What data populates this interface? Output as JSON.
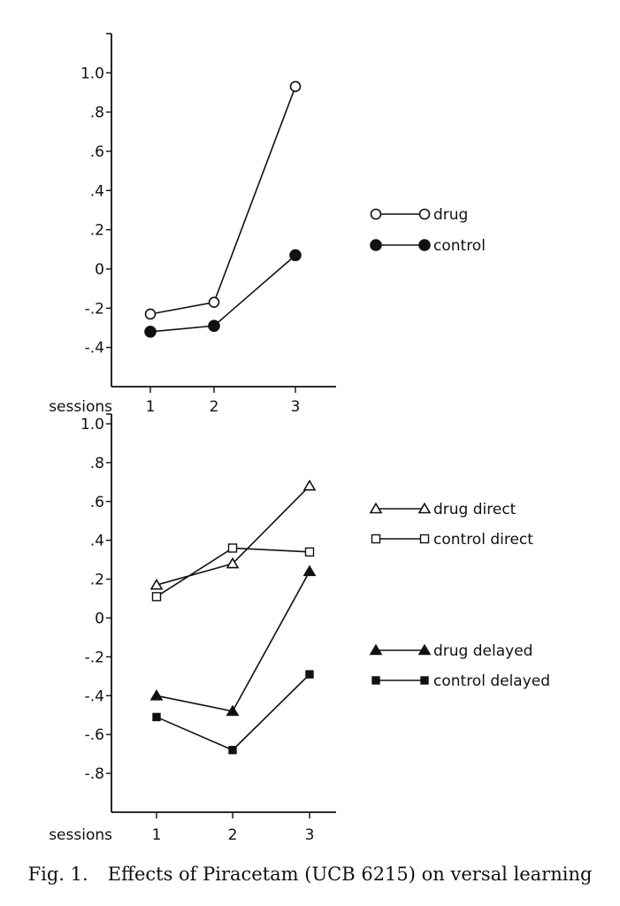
{
  "chart_data": [
    {
      "type": "line",
      "xlabel": "sessions",
      "x": [
        1,
        2,
        3
      ],
      "x_tick_labels": [
        "1",
        "2",
        "3"
      ],
      "ylim": [
        -0.6,
        1.2
      ],
      "y_tick_labels": [
        "1.0",
        ".8",
        ".6",
        ".4",
        ".2",
        "0",
        "-.2",
        "-.4"
      ],
      "legend_position": "right",
      "series": [
        {
          "name": "drug",
          "marker": "circle-open",
          "values": [
            -0.23,
            -0.17,
            0.93
          ]
        },
        {
          "name": "control",
          "marker": "circle-filled",
          "values": [
            -0.32,
            -0.29,
            0.07
          ]
        }
      ]
    },
    {
      "type": "line",
      "xlabel": "sessions",
      "x": [
        1,
        2,
        3
      ],
      "x_tick_labels": [
        "1",
        "2",
        "3"
      ],
      "ylim": [
        -1.0,
        1.05
      ],
      "y_tick_labels": [
        "1.0",
        ".8",
        ".6",
        ".4",
        ".2",
        "0",
        "-.2",
        "-.4",
        "-.6",
        "-.8"
      ],
      "legend_position": "right",
      "series": [
        {
          "name": "drug direct",
          "marker": "triangle-open",
          "values": [
            0.17,
            0.28,
            0.68
          ]
        },
        {
          "name": "control direct",
          "marker": "square-open",
          "values": [
            0.11,
            0.36,
            0.34
          ]
        },
        {
          "name": "drug delayed",
          "marker": "triangle-filled",
          "values": [
            -0.4,
            -0.48,
            0.24
          ]
        },
        {
          "name": "control delayed",
          "marker": "square-filled",
          "values": [
            -0.51,
            -0.68,
            -0.29
          ]
        }
      ]
    }
  ],
  "caption": {
    "label": "Fig. 1.",
    "text": "Effects of Piracetam (UCB 6215) on versal learning"
  }
}
